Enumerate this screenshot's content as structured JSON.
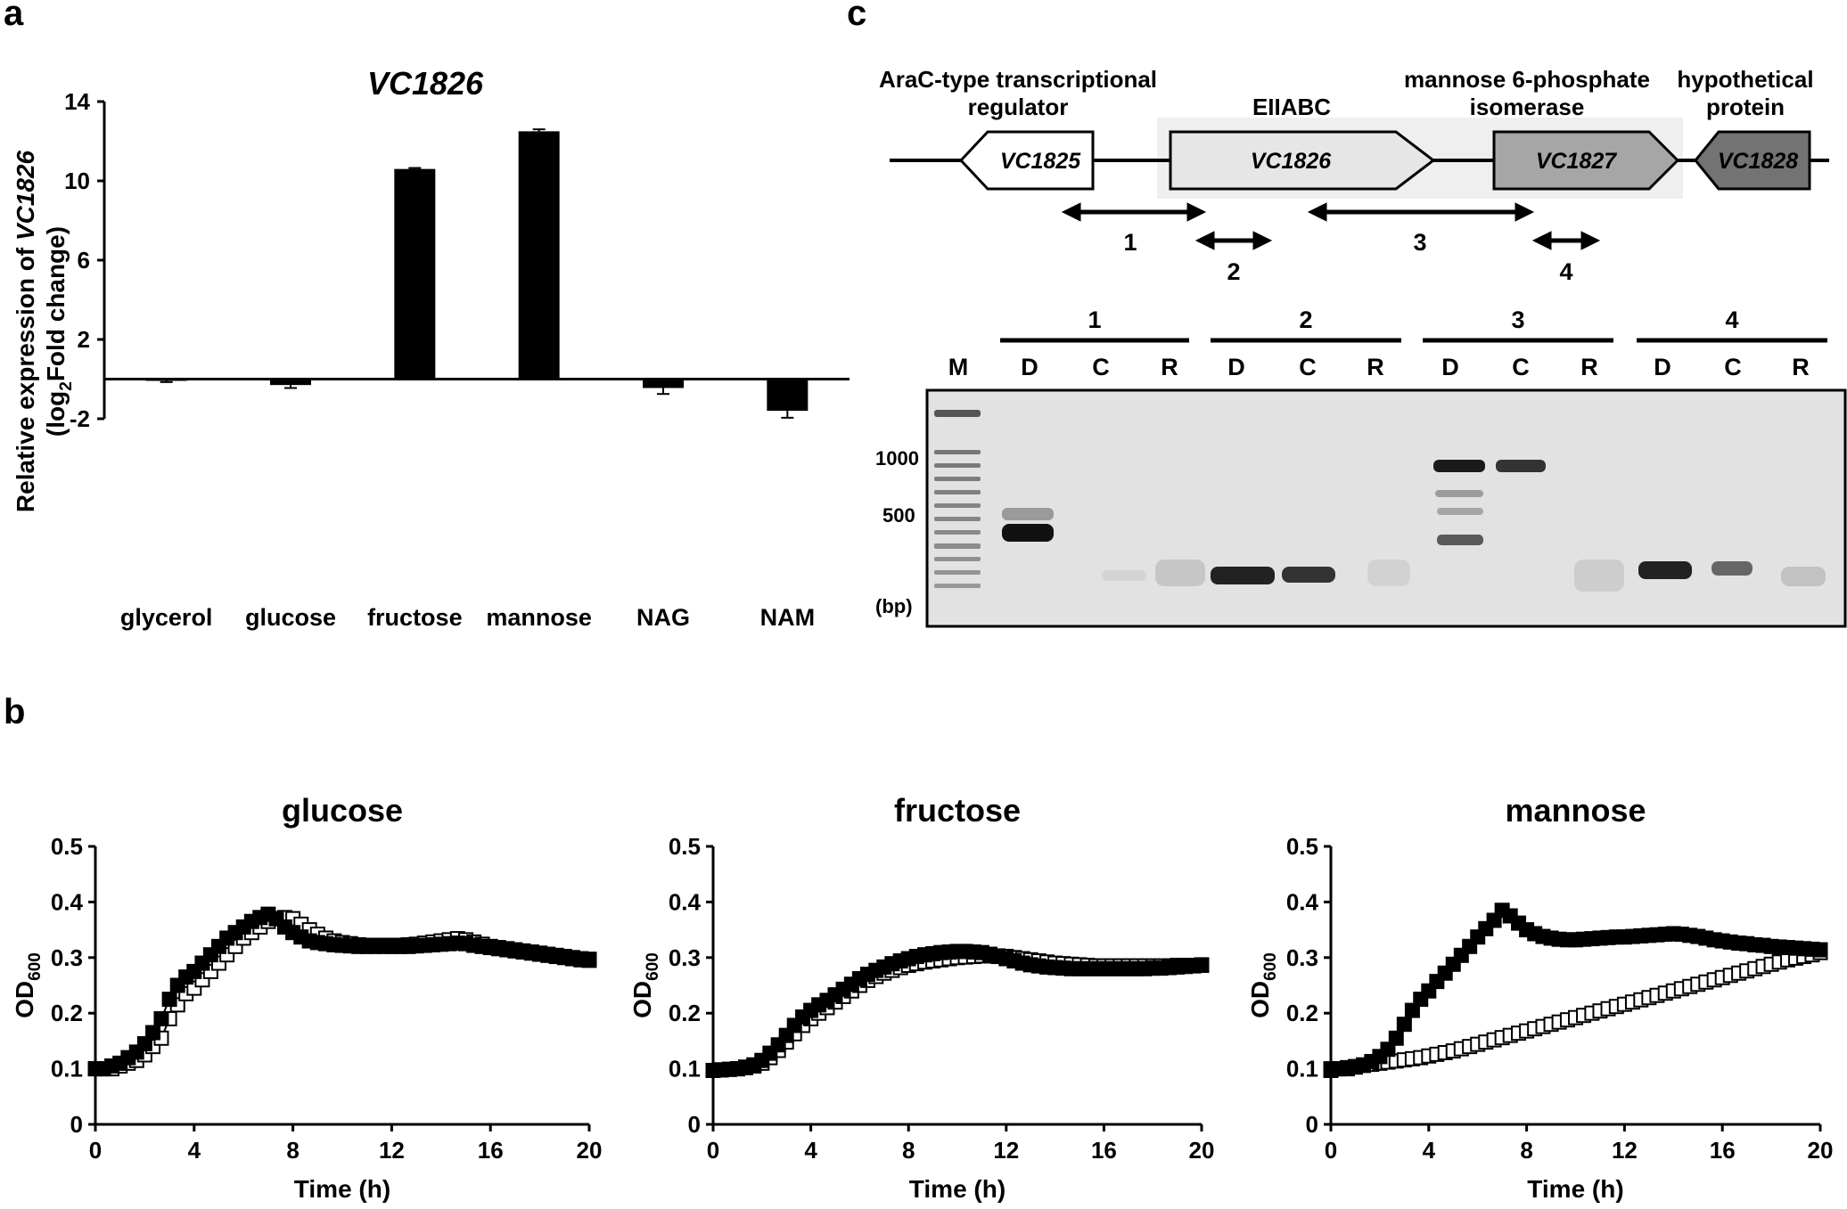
{
  "panels": {
    "a": "a",
    "b": "b",
    "c": "c"
  },
  "panel_c": {
    "genes": [
      {
        "name": "VC1825",
        "description": "AraC-type transcriptional regulator",
        "fill": "#ffffff"
      },
      {
        "name": "VC1826",
        "description": "EIIABC",
        "fill": "#e6e6e6"
      },
      {
        "name": "VC1827",
        "description": "mannose 6-phosphate isomerase",
        "fill": "#a6a6a6"
      },
      {
        "name": "VC1828",
        "description": "hypothetical protein",
        "fill": "#737373"
      }
    ],
    "amplicons": [
      "1",
      "2",
      "3",
      "4"
    ],
    "gel": {
      "marker_lane": "M",
      "lane_labels": [
        "D",
        "C",
        "R"
      ],
      "size_labels": [
        "1000",
        "500"
      ],
      "unit": "(bp)"
    }
  },
  "chart_data": [
    {
      "type": "bar",
      "title": "VC1826",
      "ylabel_prefix": "Relative expression of ",
      "ylabel_gene": "VC1826",
      "ylabel2_pre": "(log",
      "ylabel2_sub": "2",
      "ylabel2_post": "Fold change)",
      "categories": [
        "glycerol",
        "glucose",
        "fructose",
        "mannose",
        "NAG",
        "NAM"
      ],
      "values": [
        -0.05,
        -0.3,
        10.6,
        12.5,
        -0.45,
        -1.6
      ],
      "errors": [
        0.1,
        0.15,
        0.05,
        0.1,
        0.3,
        0.35
      ],
      "ylim": [
        -2,
        14
      ],
      "yticks": [
        -2,
        2,
        6,
        10,
        14
      ],
      "color": "#000000"
    },
    {
      "type": "scatter",
      "title": "glucose",
      "xlabel": "Time (h)",
      "ylabel_main": "OD",
      "ylabel_sub": "600",
      "xlim": [
        0,
        20
      ],
      "ylim": [
        0,
        0.5
      ],
      "xticks": [
        0,
        4,
        8,
        12,
        16,
        20
      ],
      "yticks": [
        0,
        0.1,
        0.2,
        0.3,
        0.4,
        0.5
      ],
      "series": [
        {
          "marker": "filled",
          "x": [
            0,
            0.33,
            0.67,
            1,
            1.33,
            1.67,
            2,
            2.33,
            2.67,
            3,
            3.33,
            3.67,
            4,
            4.33,
            4.67,
            5,
            5.33,
            5.67,
            6,
            6.33,
            6.67,
            7,
            7.33,
            7.67,
            8,
            8.33,
            8.67,
            9,
            9.33,
            9.67,
            10,
            10.33,
            10.67,
            11,
            11.33,
            11.67,
            12,
            12.33,
            12.67,
            13,
            13.33,
            13.67,
            14,
            14.33,
            14.67,
            15,
            15.33,
            15.67,
            16,
            16.33,
            16.67,
            17,
            17.33,
            17.67,
            18,
            18.33,
            18.67,
            19,
            19.33,
            19.67,
            20
          ],
          "y": [
            0.1,
            0.1,
            0.105,
            0.11,
            0.12,
            0.13,
            0.145,
            0.165,
            0.19,
            0.225,
            0.25,
            0.265,
            0.275,
            0.29,
            0.305,
            0.32,
            0.335,
            0.345,
            0.355,
            0.365,
            0.372,
            0.378,
            0.37,
            0.355,
            0.345,
            0.337,
            0.33,
            0.327,
            0.325,
            0.323,
            0.322,
            0.321,
            0.32,
            0.32,
            0.32,
            0.32,
            0.32,
            0.32,
            0.32,
            0.321,
            0.322,
            0.323,
            0.324,
            0.325,
            0.326,
            0.325,
            0.322,
            0.32,
            0.318,
            0.316,
            0.314,
            0.312,
            0.31,
            0.308,
            0.306,
            0.304,
            0.302,
            0.3,
            0.298,
            0.296,
            0.295
          ]
        },
        {
          "marker": "open",
          "x": [
            0,
            0.33,
            0.67,
            1,
            1.33,
            1.67,
            2,
            2.33,
            2.67,
            3,
            3.33,
            3.67,
            4,
            4.33,
            4.67,
            5,
            5.33,
            5.67,
            6,
            6.33,
            6.67,
            7,
            7.33,
            7.67,
            8,
            8.33,
            8.67,
            9,
            9.33,
            9.67,
            10,
            10.33,
            10.67,
            11,
            11.33,
            11.67,
            12,
            12.33,
            12.67,
            13,
            13.33,
            13.67,
            14,
            14.33,
            14.67,
            15,
            15.33,
            15.67,
            16,
            16.33,
            16.67,
            17,
            17.33,
            17.67,
            18,
            18.33,
            18.67,
            19,
            19.33,
            19.67,
            20
          ],
          "y": [
            0.1,
            0.1,
            0.1,
            0.105,
            0.11,
            0.115,
            0.125,
            0.14,
            0.155,
            0.19,
            0.215,
            0.235,
            0.245,
            0.26,
            0.275,
            0.29,
            0.305,
            0.32,
            0.335,
            0.345,
            0.355,
            0.365,
            0.37,
            0.372,
            0.37,
            0.36,
            0.35,
            0.342,
            0.335,
            0.33,
            0.327,
            0.325,
            0.323,
            0.322,
            0.322,
            0.322,
            0.322,
            0.322,
            0.323,
            0.324,
            0.326,
            0.328,
            0.33,
            0.332,
            0.334,
            0.332,
            0.328,
            0.324,
            0.32,
            0.318,
            0.316,
            0.314,
            0.312,
            0.31,
            0.308,
            0.306,
            0.304,
            0.302,
            0.3,
            0.298,
            0.297
          ]
        }
      ]
    },
    {
      "type": "scatter",
      "title": "fructose",
      "xlabel": "Time (h)",
      "ylabel_main": "OD",
      "ylabel_sub": "600",
      "xlim": [
        0,
        20
      ],
      "ylim": [
        0,
        0.5
      ],
      "xticks": [
        0,
        4,
        8,
        12,
        16,
        20
      ],
      "yticks": [
        0,
        0.1,
        0.2,
        0.3,
        0.4,
        0.5
      ],
      "series": [
        {
          "marker": "filled",
          "x": [
            0,
            0.33,
            0.67,
            1,
            1.33,
            1.67,
            2,
            2.33,
            2.67,
            3,
            3.33,
            3.67,
            4,
            4.33,
            4.67,
            5,
            5.33,
            5.67,
            6,
            6.33,
            6.67,
            7,
            7.33,
            7.67,
            8,
            8.33,
            8.67,
            9,
            9.33,
            9.67,
            10,
            10.33,
            10.67,
            11,
            11.33,
            11.67,
            12,
            12.33,
            12.67,
            13,
            13.33,
            13.67,
            14,
            14.33,
            14.67,
            15,
            15.33,
            15.67,
            16,
            16.33,
            16.67,
            17,
            17.33,
            17.67,
            18,
            18.33,
            18.67,
            19,
            19.33,
            19.67,
            20
          ],
          "y": [
            0.097,
            0.098,
            0.099,
            0.1,
            0.103,
            0.107,
            0.115,
            0.128,
            0.143,
            0.16,
            0.178,
            0.193,
            0.205,
            0.215,
            0.223,
            0.233,
            0.243,
            0.252,
            0.262,
            0.27,
            0.277,
            0.283,
            0.289,
            0.294,
            0.298,
            0.302,
            0.305,
            0.307,
            0.309,
            0.31,
            0.311,
            0.311,
            0.31,
            0.309,
            0.306,
            0.302,
            0.298,
            0.294,
            0.29,
            0.287,
            0.285,
            0.283,
            0.282,
            0.281,
            0.28,
            0.28,
            0.28,
            0.28,
            0.28,
            0.28,
            0.28,
            0.28,
            0.28,
            0.28,
            0.281,
            0.281,
            0.282,
            0.283,
            0.284,
            0.285,
            0.286
          ]
        },
        {
          "marker": "open",
          "x": [
            0,
            0.33,
            0.67,
            1,
            1.33,
            1.67,
            2,
            2.33,
            2.67,
            3,
            3.33,
            3.67,
            4,
            4.33,
            4.67,
            5,
            5.33,
            5.67,
            6,
            6.33,
            6.67,
            7,
            7.33,
            7.67,
            8,
            8.33,
            8.67,
            9,
            9.33,
            9.67,
            10,
            10.33,
            10.67,
            11,
            11.33,
            11.67,
            12,
            12.33,
            12.67,
            13,
            13.33,
            13.67,
            14,
            14.33,
            14.67,
            15,
            15.33,
            15.67,
            16,
            16.33,
            16.67,
            17,
            17.33,
            17.67,
            18,
            18.33,
            18.67,
            19,
            19.33,
            19.67,
            20
          ],
          "y": [
            0.097,
            0.098,
            0.099,
            0.1,
            0.102,
            0.105,
            0.11,
            0.12,
            0.133,
            0.148,
            0.163,
            0.178,
            0.19,
            0.2,
            0.21,
            0.22,
            0.23,
            0.24,
            0.25,
            0.259,
            0.266,
            0.272,
            0.277,
            0.282,
            0.286,
            0.289,
            0.292,
            0.294,
            0.296,
            0.298,
            0.3,
            0.301,
            0.302,
            0.303,
            0.303,
            0.303,
            0.302,
            0.3,
            0.298,
            0.296,
            0.294,
            0.292,
            0.29,
            0.289,
            0.288,
            0.287,
            0.286,
            0.285,
            0.285,
            0.285,
            0.285,
            0.285,
            0.285,
            0.285,
            0.285,
            0.285,
            0.285,
            0.286,
            0.286,
            0.286,
            0.287
          ]
        }
      ]
    },
    {
      "type": "scatter",
      "title": "mannose",
      "xlabel": "Time (h)",
      "ylabel_main": "OD",
      "ylabel_sub": "600",
      "xlim": [
        0,
        20
      ],
      "ylim": [
        0,
        0.5
      ],
      "xticks": [
        0,
        4,
        8,
        12,
        16,
        20
      ],
      "yticks": [
        0,
        0.1,
        0.2,
        0.3,
        0.4,
        0.5
      ],
      "series": [
        {
          "marker": "filled",
          "x": [
            0,
            0.33,
            0.67,
            1,
            1.33,
            1.67,
            2,
            2.33,
            2.67,
            3,
            3.33,
            3.67,
            4,
            4.33,
            4.67,
            5,
            5.33,
            5.67,
            6,
            6.33,
            6.67,
            7,
            7.33,
            7.67,
            8,
            8.33,
            8.67,
            9,
            9.33,
            9.67,
            10,
            10.33,
            10.67,
            11,
            11.33,
            11.67,
            12,
            12.33,
            12.67,
            13,
            13.33,
            13.67,
            14,
            14.33,
            14.67,
            15,
            15.33,
            15.67,
            16,
            16.33,
            16.67,
            17,
            17.33,
            17.67,
            18,
            18.33,
            18.67,
            19,
            19.33,
            19.67,
            20
          ],
          "y": [
            0.1,
            0.1,
            0.1,
            0.103,
            0.107,
            0.113,
            0.122,
            0.135,
            0.155,
            0.18,
            0.205,
            0.225,
            0.24,
            0.257,
            0.272,
            0.288,
            0.304,
            0.32,
            0.337,
            0.352,
            0.367,
            0.385,
            0.375,
            0.362,
            0.35,
            0.343,
            0.338,
            0.335,
            0.333,
            0.332,
            0.332,
            0.333,
            0.334,
            0.335,
            0.336,
            0.337,
            0.337,
            0.338,
            0.339,
            0.34,
            0.341,
            0.342,
            0.343,
            0.342,
            0.34,
            0.338,
            0.335,
            0.332,
            0.33,
            0.328,
            0.326,
            0.325,
            0.323,
            0.322,
            0.32,
            0.319,
            0.318,
            0.317,
            0.316,
            0.315,
            0.314
          ]
        },
        {
          "marker": "open",
          "x": [
            0,
            0.33,
            0.67,
            1,
            1.33,
            1.67,
            2,
            2.33,
            2.67,
            3,
            3.33,
            3.67,
            4,
            4.33,
            4.67,
            5,
            5.33,
            5.67,
            6,
            6.33,
            6.67,
            7,
            7.33,
            7.67,
            8,
            8.33,
            8.67,
            9,
            9.33,
            9.67,
            10,
            10.33,
            10.67,
            11,
            11.33,
            11.67,
            12,
            12.33,
            12.67,
            13,
            13.33,
            13.67,
            14,
            14.33,
            14.67,
            15,
            15.33,
            15.67,
            16,
            16.33,
            16.67,
            17,
            17.33,
            17.67,
            18,
            18.33,
            18.67,
            19,
            19.33,
            19.67,
            20
          ],
          "y": [
            0.097,
            0.1,
            0.102,
            0.104,
            0.106,
            0.108,
            0.11,
            0.112,
            0.114,
            0.116,
            0.118,
            0.12,
            0.123,
            0.126,
            0.129,
            0.132,
            0.136,
            0.14,
            0.144,
            0.148,
            0.152,
            0.156,
            0.16,
            0.164,
            0.168,
            0.172,
            0.176,
            0.18,
            0.184,
            0.188,
            0.192,
            0.196,
            0.2,
            0.204,
            0.208,
            0.212,
            0.216,
            0.22,
            0.224,
            0.228,
            0.232,
            0.236,
            0.24,
            0.244,
            0.248,
            0.252,
            0.256,
            0.26,
            0.264,
            0.268,
            0.272,
            0.276,
            0.28,
            0.284,
            0.288,
            0.292,
            0.296,
            0.299,
            0.302,
            0.305,
            0.309
          ]
        }
      ]
    }
  ]
}
